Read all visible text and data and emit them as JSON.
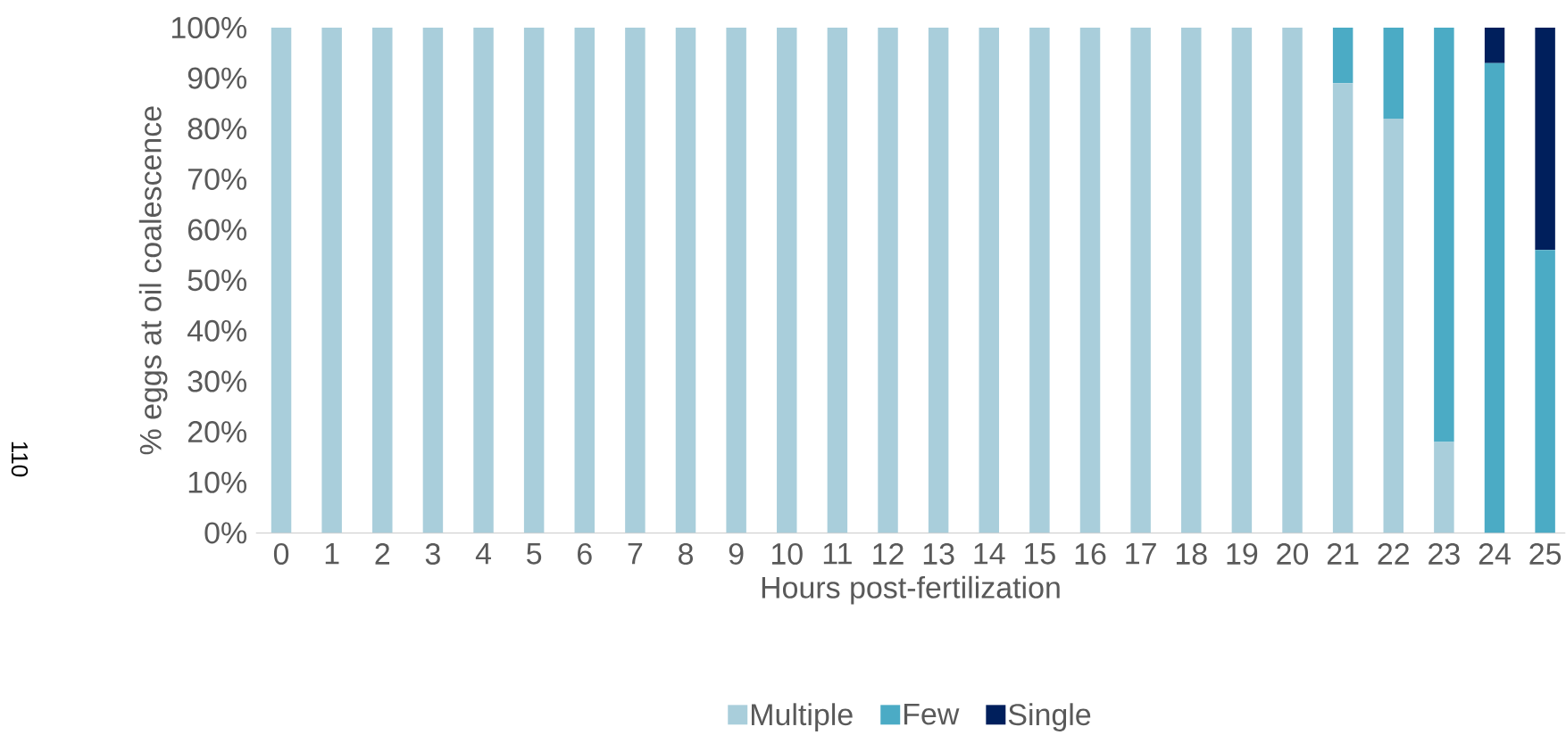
{
  "chart_data": {
    "type": "bar",
    "stacked": true,
    "xlabel": "Hours post-fertilization",
    "ylabel": "% eggs at oil coalescence",
    "annotations": [
      "110"
    ],
    "categories": [
      "0",
      "1",
      "2",
      "3",
      "4",
      "5",
      "6",
      "7",
      "8",
      "9",
      "10",
      "11",
      "12",
      "13",
      "14",
      "15",
      "16",
      "17",
      "18",
      "19",
      "20",
      "21",
      "22",
      "23",
      "24",
      "25"
    ],
    "series": [
      {
        "name": "Multiple",
        "color": "#a9cedb",
        "values": [
          100,
          100,
          100,
          100,
          100,
          100,
          100,
          100,
          100,
          100,
          100,
          100,
          100,
          100,
          100,
          100,
          100,
          100,
          100,
          100,
          100,
          89,
          82,
          18,
          0,
          0
        ]
      },
      {
        "name": "Few",
        "color": "#4babc5",
        "values": [
          0,
          0,
          0,
          0,
          0,
          0,
          0,
          0,
          0,
          0,
          0,
          0,
          0,
          0,
          0,
          0,
          0,
          0,
          0,
          0,
          0,
          11,
          18,
          82,
          93,
          56
        ]
      },
      {
        "name": "Single",
        "color": "#001f5c",
        "values": [
          0,
          0,
          0,
          0,
          0,
          0,
          0,
          0,
          0,
          0,
          0,
          0,
          0,
          0,
          0,
          0,
          0,
          0,
          0,
          0,
          0,
          0,
          0,
          0,
          7,
          44
        ]
      }
    ],
    "ylim": [
      0,
      100
    ],
    "yticks": [
      {
        "value": 0,
        "label": "0%"
      },
      {
        "value": 10,
        "label": "10%"
      },
      {
        "value": 20,
        "label": "20%"
      },
      {
        "value": 30,
        "label": "30%"
      },
      {
        "value": 40,
        "label": "40%"
      },
      {
        "value": 50,
        "label": "50%"
      },
      {
        "value": 60,
        "label": "60%"
      },
      {
        "value": 70,
        "label": "70%"
      },
      {
        "value": 80,
        "label": "80%"
      },
      {
        "value": 90,
        "label": "90%"
      },
      {
        "value": 100,
        "label": "100%"
      }
    ],
    "legend": "bottom"
  }
}
